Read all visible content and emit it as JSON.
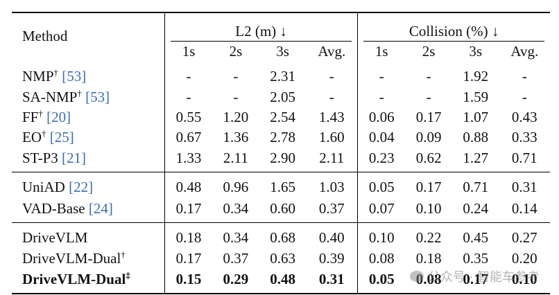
{
  "table": {
    "method_header": "Method",
    "groups": [
      {
        "label": "L2 (m) ↓"
      },
      {
        "label": "Collision (%) ↓"
      }
    ],
    "subheaders": [
      "1s",
      "2s",
      "3s",
      "Avg.",
      "1s",
      "2s",
      "3s",
      "Avg."
    ],
    "sections": [
      {
        "rows": [
          {
            "name": "NMP",
            "mark": "†",
            "cite": "[53]",
            "values": [
              "-",
              "-",
              "2.31",
              "-",
              "-",
              "-",
              "1.92",
              "-"
            ]
          },
          {
            "name": "SA-NMP",
            "mark": "†",
            "cite": "[53]",
            "values": [
              "-",
              "-",
              "2.05",
              "-",
              "-",
              "-",
              "1.59",
              "-"
            ]
          },
          {
            "name": "FF",
            "mark": "†",
            "cite": "[20]",
            "values": [
              "0.55",
              "1.20",
              "2.54",
              "1.43",
              "0.06",
              "0.17",
              "1.07",
              "0.43"
            ]
          },
          {
            "name": "EO",
            "mark": "†",
            "cite": "[25]",
            "values": [
              "0.67",
              "1.36",
              "2.78",
              "1.60",
              "0.04",
              "0.09",
              "0.88",
              "0.33"
            ]
          },
          {
            "name": "ST-P3",
            "mark": "",
            "cite": "[21]",
            "values": [
              "1.33",
              "2.11",
              "2.90",
              "2.11",
              "0.23",
              "0.62",
              "1.27",
              "0.71"
            ]
          }
        ]
      },
      {
        "rows": [
          {
            "name": "UniAD",
            "mark": "",
            "cite": "[22]",
            "values": [
              "0.48",
              "0.96",
              "1.65",
              "1.03",
              "0.05",
              "0.17",
              "0.71",
              "0.31"
            ]
          },
          {
            "name": "VAD-Base",
            "mark": "",
            "cite": "[24]",
            "values": [
              "0.17",
              "0.34",
              "0.60",
              "0.37",
              "0.07",
              "0.10",
              "0.24",
              "0.14"
            ]
          }
        ]
      },
      {
        "rows": [
          {
            "name": "DriveVLM",
            "mark": "",
            "cite": "",
            "values": [
              "0.18",
              "0.34",
              "0.68",
              "0.40",
              "0.10",
              "0.22",
              "0.45",
              "0.27"
            ]
          },
          {
            "name": "DriveVLM-Dual",
            "mark": "†",
            "cite": "",
            "values": [
              "0.17",
              "0.37",
              "0.63",
              "0.39",
              "0.08",
              "0.18",
              "0.35",
              "0.20"
            ]
          },
          {
            "name": "DriveVLM-Dual",
            "mark": "‡",
            "cite": "",
            "bold": true,
            "values": [
              "0.15",
              "0.29",
              "0.48",
              "0.31",
              "0.05",
              "0.08",
              "0.17",
              "0.10"
            ]
          }
        ]
      }
    ]
  },
  "watermark": {
    "text": "公众号 · 智能车参考",
    "icon": "wechat-icon"
  }
}
